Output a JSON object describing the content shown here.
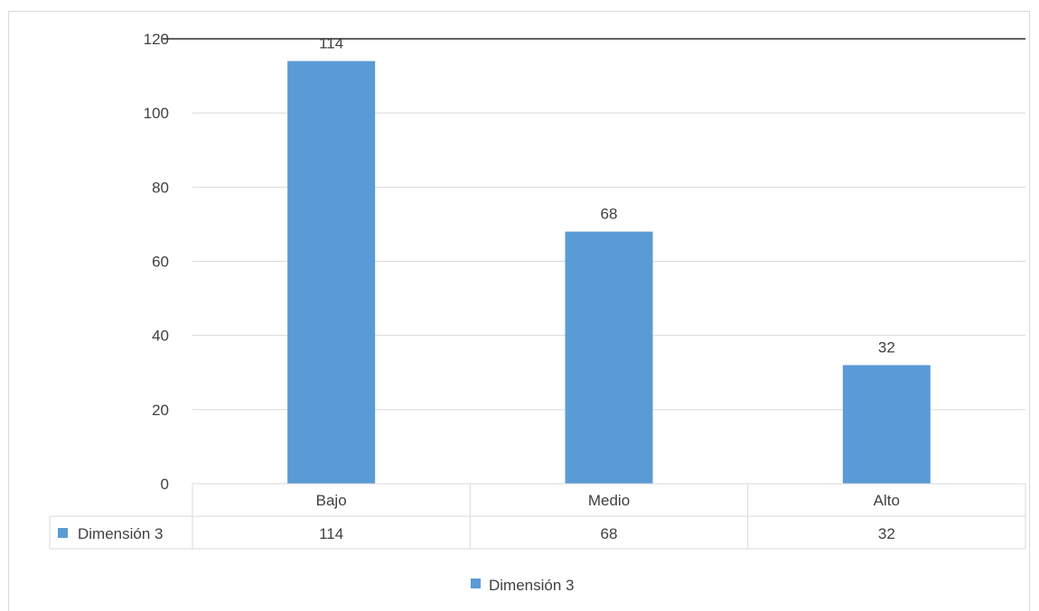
{
  "chart_data": {
    "type": "bar",
    "categories": [
      "Bajo",
      "Medio",
      "Alto"
    ],
    "series": [
      {
        "name": "Dimensión 3",
        "values": [
          114,
          68,
          32
        ],
        "color": "#5b9bd5"
      }
    ],
    "ylim": [
      0,
      120
    ],
    "yticks": [
      0,
      20,
      40,
      60,
      80,
      100,
      120
    ],
    "data_labels": true,
    "data_table": true,
    "grid": true,
    "legend": "bottom",
    "title": "",
    "xlabel": "",
    "ylabel": ""
  }
}
